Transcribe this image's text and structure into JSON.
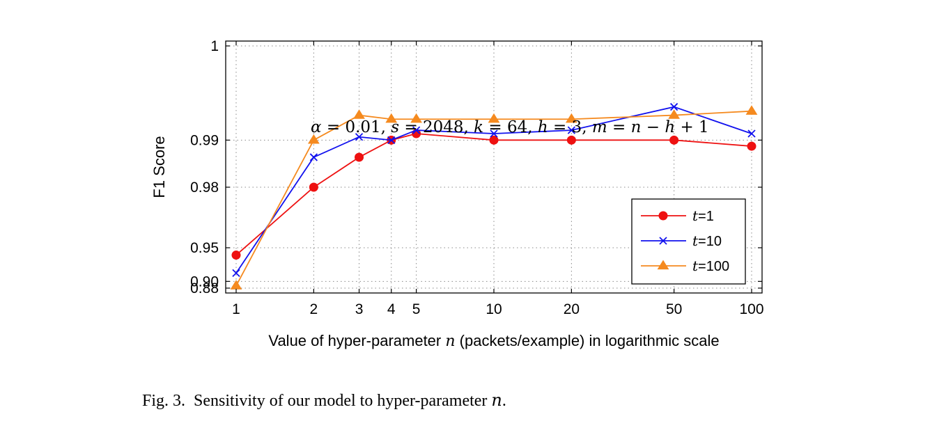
{
  "chart_data": {
    "type": "line",
    "title": "",
    "xlabel": {
      "before": "Value of hyper-parameter ",
      "var": "n",
      "after": " (packets/example) in logarithmic scale"
    },
    "ylabel": "F1 Score",
    "x_scale": "log",
    "y_scale": "reciprocal",
    "x": [
      1,
      2,
      3,
      4,
      5,
      10,
      20,
      50,
      100
    ],
    "x_tick_labels": [
      "1",
      "2",
      "3",
      "4",
      "5",
      "10",
      "20",
      "50",
      "100"
    ],
    "y_ticks": [
      0.88,
      0.9,
      0.95,
      0.98,
      0.99,
      1
    ],
    "y_tick_labels": [
      "0.88",
      "0.90",
      "0.95",
      "0.98",
      "0.99",
      "1"
    ],
    "xlim": [
      1,
      100
    ],
    "ylim": [
      0.88,
      1
    ],
    "grid": true,
    "legend_position": "bottom-right",
    "series": [
      {
        "name": "t=1",
        "name_var": "t",
        "name_value": "=1",
        "color": "#ee1111",
        "marker": "circle",
        "values": [
          0.943,
          0.98,
          0.987,
          0.99,
          0.991,
          0.99,
          0.99,
          0.99,
          0.989
        ]
      },
      {
        "name": "t=10",
        "name_var": "t",
        "name_value": "=10",
        "color": "#1111ee",
        "marker": "cross",
        "values": [
          0.918,
          0.987,
          0.9905,
          0.99,
          0.9915,
          0.991,
          0.9915,
          0.9945,
          0.991
        ]
      },
      {
        "name": "t=100",
        "name_var": "t",
        "name_value": "=100",
        "color": "#f58a1f",
        "marker": "triangle",
        "values": [
          0.8875,
          0.99,
          0.9935,
          0.993,
          0.993,
          0.993,
          0.993,
          0.9935,
          0.994
        ]
      }
    ],
    "annotation": "α = 0.01, s = 2048, k = 64, h = 3, m = n − h + 1"
  },
  "caption": {
    "label": "Fig. 3.",
    "text": "Sensitivity of our model to hyper-parameter ",
    "var": "n",
    "end": "."
  }
}
